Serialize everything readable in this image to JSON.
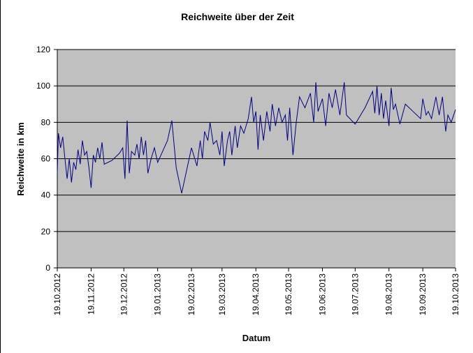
{
  "chart_data": {
    "type": "line",
    "title": "Reichweite über der Zeit",
    "x_label": "Datum",
    "y_label": "Reichweite in km",
    "xlim": [
      "2012-10-19",
      "2013-10-19"
    ],
    "xticks": [
      {
        "value": "2012-10-19",
        "label": "19.10.2012"
      },
      {
        "value": "2012-11-19",
        "label": "19.11.2012"
      },
      {
        "value": "2012-12-19",
        "label": "19.12.2012"
      },
      {
        "value": "2013-01-19",
        "label": "19.01.2013"
      },
      {
        "value": "2013-02-19",
        "label": "19.02.2013"
      },
      {
        "value": "2013-03-19",
        "label": "19.03.2013"
      },
      {
        "value": "2013-04-19",
        "label": "19.04.2013"
      },
      {
        "value": "2013-05-19",
        "label": "19.05.2013"
      },
      {
        "value": "2013-06-19",
        "label": "19.06.2013"
      },
      {
        "value": "2013-07-19",
        "label": "19.07.2013"
      },
      {
        "value": "2013-08-19",
        "label": "19.08.2013"
      },
      {
        "value": "2013-09-19",
        "label": "19.09.2013"
      },
      {
        "value": "2013-10-19",
        "label": "19.10.2013"
      }
    ],
    "ylim": [
      0,
      120
    ],
    "yticks": [
      0,
      20,
      40,
      60,
      80,
      100,
      120
    ],
    "grid": true,
    "color": "#000080",
    "x": [
      "2012-10-19",
      "2012-10-20",
      "2012-10-22",
      "2012-10-24",
      "2012-10-26",
      "2012-10-28",
      "2012-10-30",
      "2012-11-01",
      "2012-11-03",
      "2012-11-05",
      "2012-11-07",
      "2012-11-09",
      "2012-11-11",
      "2012-11-13",
      "2012-11-15",
      "2012-11-17",
      "2012-11-19",
      "2012-11-21",
      "2012-11-23",
      "2012-11-25",
      "2012-11-27",
      "2012-11-29",
      "2012-12-01",
      "2012-12-08",
      "2012-12-15",
      "2012-12-18",
      "2012-12-20",
      "2012-12-22",
      "2012-12-24",
      "2012-12-26",
      "2012-12-29",
      "2012-12-31",
      "2013-01-02",
      "2013-01-04",
      "2013-01-06",
      "2013-01-08",
      "2013-01-10",
      "2013-01-13",
      "2013-01-16",
      "2013-01-19",
      "2013-01-22",
      "2013-01-25",
      "2013-01-28",
      "2013-02-01",
      "2013-02-05",
      "2013-02-10",
      "2013-02-19",
      "2013-02-24",
      "2013-02-27",
      "2013-03-01",
      "2013-03-03",
      "2013-03-06",
      "2013-03-08",
      "2013-03-11",
      "2013-03-14",
      "2013-03-17",
      "2013-03-19",
      "2013-03-21",
      "2013-03-24",
      "2013-03-26",
      "2013-03-28",
      "2013-03-31",
      "2013-04-02",
      "2013-04-05",
      "2013-04-08",
      "2013-04-12",
      "2013-04-15",
      "2013-04-17",
      "2013-04-19",
      "2013-04-21",
      "2013-04-23",
      "2013-04-26",
      "2013-04-29",
      "2013-05-02",
      "2013-05-04",
      "2013-05-07",
      "2013-05-10",
      "2013-05-13",
      "2013-05-16",
      "2013-05-18",
      "2013-05-20",
      "2013-05-23",
      "2013-05-26",
      "2013-05-29",
      "2013-06-03",
      "2013-06-08",
      "2013-06-11",
      "2013-06-13",
      "2013-06-15",
      "2013-06-19",
      "2013-06-22",
      "2013-06-25",
      "2013-06-28",
      "2013-07-01",
      "2013-07-05",
      "2013-07-09",
      "2013-07-11",
      "2013-07-19",
      "2013-07-28",
      "2013-08-04",
      "2013-08-06",
      "2013-08-08",
      "2013-08-10",
      "2013-08-12",
      "2013-08-14",
      "2013-08-16",
      "2013-08-19",
      "2013-08-21",
      "2013-08-23",
      "2013-08-25",
      "2013-08-29",
      "2013-09-03",
      "2013-09-10",
      "2013-09-17",
      "2013-09-19",
      "2013-09-22",
      "2013-09-24",
      "2013-09-27",
      "2013-10-01",
      "2013-10-04",
      "2013-10-07",
      "2013-10-10",
      "2013-10-12",
      "2013-10-15",
      "2013-10-19"
    ],
    "values": [
      52,
      74,
      66,
      72,
      60,
      49,
      60,
      47,
      58,
      54,
      65,
      57,
      70,
      62,
      64,
      55,
      44,
      62,
      58,
      66,
      60,
      69,
      57,
      59,
      63,
      66,
      49,
      81,
      52,
      64,
      62,
      68,
      60,
      72,
      62,
      70,
      52,
      60,
      66,
      58,
      62,
      66,
      70,
      81,
      55,
      41,
      66,
      56,
      70,
      60,
      75,
      70,
      80,
      68,
      70,
      62,
      75,
      56,
      70,
      75,
      62,
      78,
      66,
      78,
      74,
      82,
      94,
      80,
      86,
      65,
      84,
      70,
      86,
      75,
      90,
      78,
      88,
      80,
      84,
      70,
      88,
      62,
      80,
      94,
      88,
      96,
      80,
      102,
      86,
      93,
      78,
      96,
      88,
      98,
      84,
      102,
      84,
      79,
      88,
      97,
      85,
      100,
      84,
      96,
      82,
      92,
      78,
      99,
      87,
      90,
      79,
      90,
      86,
      82,
      93,
      84,
      86,
      82,
      94,
      84,
      94,
      75,
      84,
      80,
      87
    ]
  }
}
